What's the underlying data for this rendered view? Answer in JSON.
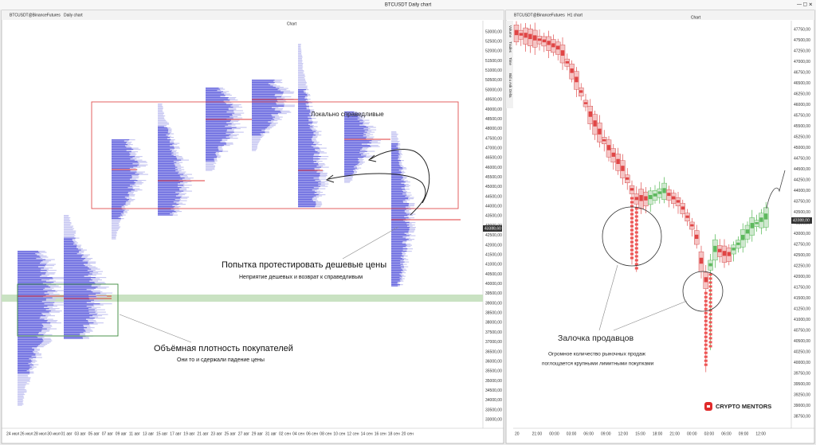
{
  "window": {
    "title": "BTCUSDT Daily chart"
  },
  "left_panel": {
    "symbol": "BTCUSDT@BinanceFutures",
    "timeframe": "Daily chart",
    "label": "Chart",
    "current_price": "43388,60",
    "price_labels": [
      "53000,00",
      "52500,00",
      "52000,00",
      "51500,00",
      "51000,00",
      "50500,00",
      "50000,00",
      "49500,00",
      "49000,00",
      "48500,00",
      "48000,00",
      "47500,00",
      "47000,00",
      "46500,00",
      "46000,00",
      "45500,00",
      "45000,00",
      "44500,00",
      "44000,00",
      "43500,00",
      "43000,00",
      "42500,00",
      "42000,00",
      "41500,00",
      "41000,00",
      "40500,00",
      "40000,00",
      "39500,00",
      "39000,00",
      "38500,00",
      "38000,00",
      "37500,00",
      "37000,00",
      "36500,00",
      "36000,00",
      "35500,00",
      "35000,00",
      "34500,00",
      "34000,00",
      "33500,00",
      "33000,00"
    ],
    "date_labels": [
      "24 июл",
      "26 июл",
      "28 июл",
      "30 июл",
      "01 авг",
      "03 авг",
      "05 авг",
      "07 авг",
      "09 авг",
      "11 авг",
      "13 авг",
      "15 авг",
      "17 авг",
      "19 авг",
      "21 авг",
      "23 авг",
      "25 авг",
      "27 авг",
      "29 авг",
      "31 авг",
      "02 сен",
      "04 сен",
      "06 сен",
      "08 сен",
      "10 сен",
      "12 сен",
      "14 сен",
      "16 сен",
      "18 сен",
      "20 сен"
    ]
  },
  "right_panel": {
    "symbol": "BTCUSDT@BinanceFutures",
    "timeframe": "H1 chart",
    "label": "Chart",
    "current_price": "43388,00",
    "side_tabs": [
      "Volume",
      "Trades",
      "Time",
      "Bid x Ask",
      "Delta"
    ],
    "price_labels": [
      "47750,00",
      "47500,00",
      "47250,00",
      "47000,00",
      "46750,00",
      "46500,00",
      "46250,00",
      "46000,00",
      "45750,00",
      "45500,00",
      "45250,00",
      "45000,00",
      "44750,00",
      "44500,00",
      "44250,00",
      "44000,00",
      "43750,00",
      "43500,00",
      "43250,00",
      "43000,00",
      "42750,00",
      "42500,00",
      "42250,00",
      "42000,00",
      "41750,00",
      "41500,00",
      "41250,00",
      "41000,00",
      "40750,00",
      "40500,00",
      "40250,00",
      "40000,00",
      "39750,00",
      "39500,00",
      "39250,00",
      "39000,00",
      "38750,00"
    ],
    "time_labels": [
      "20",
      "21:00",
      "00:00",
      "03:00",
      "06:00",
      "09:00",
      "12:00",
      "15:00",
      "18:00",
      "21:00",
      "00:00",
      "03:00",
      "06:00",
      "09:00",
      "12:00"
    ]
  },
  "annotations": {
    "fair_value": "Локально справедливые",
    "test_title": "Попытка протестировать дешевые цены",
    "test_note": "Неприятие дешевых и возврат к справедливым",
    "buyers_title": "Объёмная плотность покупателей",
    "buyers_note": "Они то и сдержали падение цены",
    "sellers_title": "Залочка продавцов",
    "sellers_note_1": "Огромное количество рыночных продаж",
    "sellers_note_2": "поглощается крупными лимитными покупками"
  },
  "logo": {
    "text": "CRYPTO MENTORS"
  }
}
